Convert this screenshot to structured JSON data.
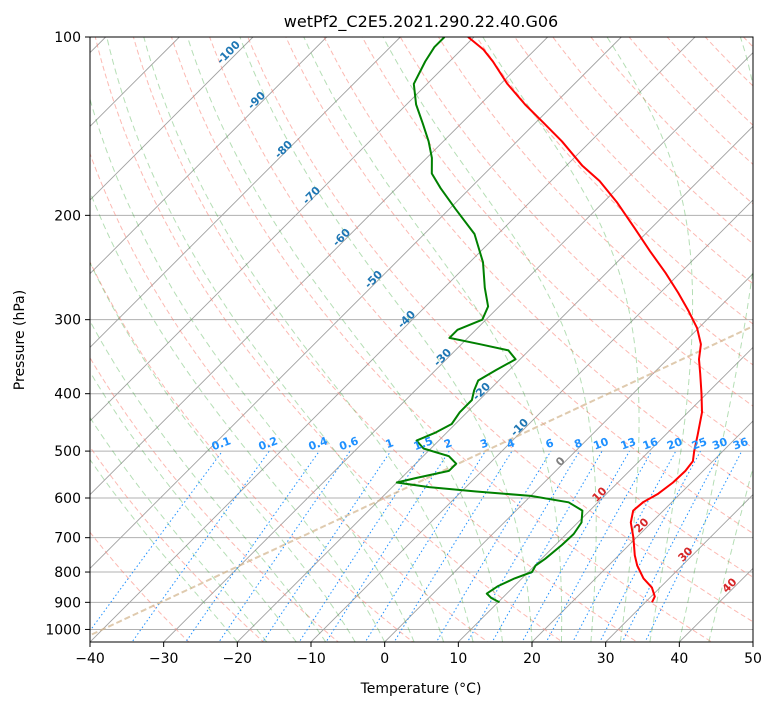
{
  "chart_data": {
    "type": "line",
    "title": "wetPf2_C2E5.2021.290.22.40.G06",
    "xlabel": "Temperature (°C)",
    "ylabel": "Pressure (hPa)",
    "xlim": [
      -40,
      50
    ],
    "ylim": [
      1050,
      100
    ],
    "y_scale": "log",
    "skew": true,
    "x_ticks": [
      -40,
      -30,
      -20,
      -10,
      0,
      10,
      20,
      30,
      40,
      50
    ],
    "x_tick_labels": [
      "−40",
      "−30",
      "−20",
      "−10",
      "0",
      "10",
      "20",
      "30",
      "40",
      "50"
    ],
    "y_ticks": [
      100,
      200,
      300,
      400,
      500,
      600,
      700,
      800,
      900,
      1000
    ],
    "y_tick_labels": [
      "100",
      "200",
      "300",
      "400",
      "500",
      "600",
      "700",
      "800",
      "900",
      "1000"
    ],
    "grid": true,
    "series": [
      {
        "color": "#ff0000",
        "kind": "temperature",
        "points": [
          [
            900,
            30.9
          ],
          [
            880,
            30.5
          ],
          [
            850,
            28.9
          ],
          [
            820,
            26.5
          ],
          [
            780,
            23.9
          ],
          [
            750,
            22.2
          ],
          [
            700,
            19.6
          ],
          [
            660,
            17.2
          ],
          [
            630,
            15.9
          ],
          [
            610,
            16.1
          ],
          [
            590,
            17.0
          ],
          [
            565,
            17.5
          ],
          [
            540,
            17.6
          ],
          [
            520,
            17.3
          ],
          [
            500,
            16.1
          ],
          [
            470,
            14.4
          ],
          [
            430,
            11.9
          ],
          [
            400,
            9.3
          ],
          [
            370,
            6.4
          ],
          [
            350,
            4.3
          ],
          [
            330,
            2.5
          ],
          [
            310,
            -0.2
          ],
          [
            290,
            -3.7
          ],
          [
            270,
            -7.6
          ],
          [
            250,
            -12.0
          ],
          [
            230,
            -17.0
          ],
          [
            210,
            -22.3
          ],
          [
            190,
            -28.2
          ],
          [
            175,
            -33.4
          ],
          [
            165,
            -37.8
          ],
          [
            150,
            -43.9
          ],
          [
            140,
            -48.7
          ],
          [
            130,
            -53.9
          ],
          [
            120,
            -59.1
          ],
          [
            110,
            -64.1
          ],
          [
            105,
            -67.0
          ],
          [
            100,
            -70.8
          ]
        ]
      },
      {
        "color": "#008000",
        "kind": "dewpoint",
        "points": [
          [
            900,
            10.2
          ],
          [
            885,
            8.5
          ],
          [
            870,
            7.3
          ],
          [
            845,
            7.8
          ],
          [
            820,
            9.0
          ],
          [
            800,
            10.5
          ],
          [
            780,
            10.1
          ],
          [
            760,
            10.5
          ],
          [
            720,
            10.9
          ],
          [
            690,
            11.0
          ],
          [
            660,
            10.5
          ],
          [
            630,
            9.0
          ],
          [
            610,
            6.0
          ],
          [
            595,
            0.0
          ],
          [
            585,
            -8.0
          ],
          [
            575,
            -15.0
          ],
          [
            565,
            -20.0
          ],
          [
            555,
            -18.0
          ],
          [
            540,
            -14.5
          ],
          [
            525,
            -14.5
          ],
          [
            510,
            -16.5
          ],
          [
            495,
            -21.0
          ],
          [
            480,
            -23.0
          ],
          [
            465,
            -21.5
          ],
          [
            450,
            -20.5
          ],
          [
            430,
            -21.0
          ],
          [
            410,
            -21.0
          ],
          [
            395,
            -22.0
          ],
          [
            380,
            -22.8
          ],
          [
            365,
            -21.8
          ],
          [
            350,
            -20.6
          ],
          [
            338,
            -22.8
          ],
          [
            330,
            -27.5
          ],
          [
            322,
            -32.5
          ],
          [
            312,
            -32.5
          ],
          [
            300,
            -30.5
          ],
          [
            285,
            -31.5
          ],
          [
            265,
            -34.5
          ],
          [
            240,
            -38.2
          ],
          [
            215,
            -43.2
          ],
          [
            195,
            -49.2
          ],
          [
            180,
            -54.0
          ],
          [
            170,
            -57.2
          ],
          [
            160,
            -59.3
          ],
          [
            150,
            -62.0
          ],
          [
            140,
            -65.2
          ],
          [
            130,
            -68.7
          ],
          [
            120,
            -71.8
          ],
          [
            110,
            -73.3
          ],
          [
            104,
            -74.0
          ],
          [
            100,
            -74.0
          ]
        ]
      }
    ],
    "dry_adiabat_labels": [
      "-100",
      "-90",
      "-80",
      "-70",
      "-60",
      "-50",
      "-40",
      "-30",
      "-20",
      "-10",
      "0",
      "10",
      "20",
      "30",
      "40"
    ],
    "mixing_ratio_labels": [
      "0.1",
      "0.2",
      "0.4",
      "0.6",
      "1",
      "1.5",
      "2",
      "3",
      "4",
      "6",
      "8",
      "10",
      "13",
      "16",
      "20",
      "25",
      "30",
      "36"
    ],
    "mixing_ratio_values": [
      0.1,
      0.2,
      0.4,
      0.6,
      1,
      1.5,
      2,
      3,
      4,
      6,
      8,
      10,
      13,
      16,
      20,
      25,
      30,
      36
    ],
    "colors": {
      "dry_adiabat": "#fa8072",
      "moist_adiabat": "#2ca02c",
      "mixing_ratio": "#1e90ff",
      "isotherm": "#808080",
      "label_blue": "#1f77b4",
      "label_red": "#d62728",
      "label_zero": "#7f7f7f",
      "lcl_curve": "#d2b48c"
    }
  }
}
